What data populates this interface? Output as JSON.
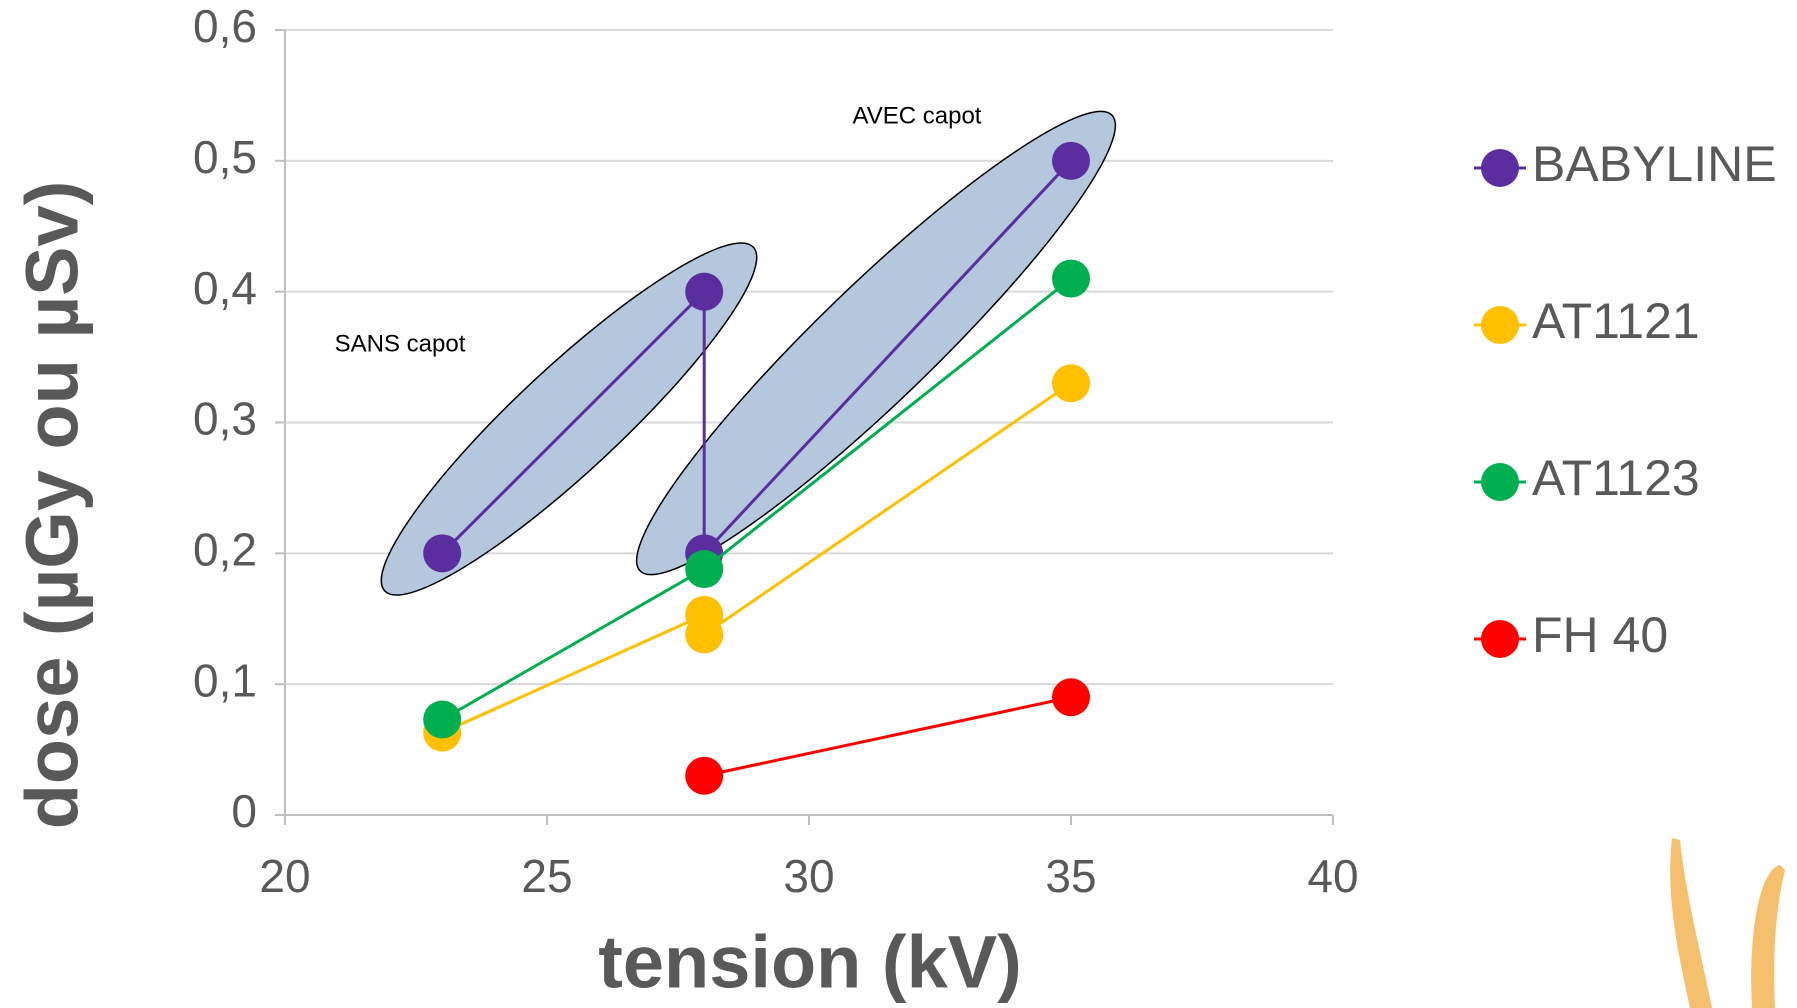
{
  "chart_data": {
    "type": "line",
    "x_label": "tension (kV)",
    "y_label": "dose (µGy ou µSv)",
    "annotations": [
      "SANS capot",
      "AVEC capot"
    ],
    "xlim": [
      20,
      40
    ],
    "xticks": [
      20,
      25,
      30,
      35,
      40
    ],
    "ylim": [
      0,
      0.6
    ],
    "yticks": [
      0,
      {
        "value": 0.1,
        "label": "0,1"
      },
      {
        "value": 0.2,
        "label": "0,2"
      },
      {
        "value": 0.3,
        "label": "0,3"
      },
      {
        "value": 0.4,
        "label": "0,4"
      },
      {
        "value": 0.5,
        "label": "0,5"
      },
      {
        "value": 0.6,
        "label": "0,6"
      }
    ],
    "grid": true,
    "legend": "right",
    "series": [
      {
        "name": "BABYLINE",
        "color": "#5b2ea0",
        "x": [
          23,
          28,
          28,
          35
        ],
        "values": [
          0.2,
          0.4,
          0.2,
          0.5
        ]
      },
      {
        "name": "AT1121",
        "color": "#ffc000",
        "x": [
          23,
          28,
          28,
          35
        ],
        "values": [
          0.063,
          0.153,
          0.138,
          0.33
        ]
      },
      {
        "name": "AT1123",
        "color": "#00b050",
        "x": [
          23,
          28,
          35
        ],
        "values": [
          0.073,
          0.188,
          0.41
        ]
      },
      {
        "name": "FH 40",
        "color": "#ff0000",
        "x": [
          28,
          35
        ],
        "values": [
          0.03,
          0.09
        ]
      }
    ]
  }
}
